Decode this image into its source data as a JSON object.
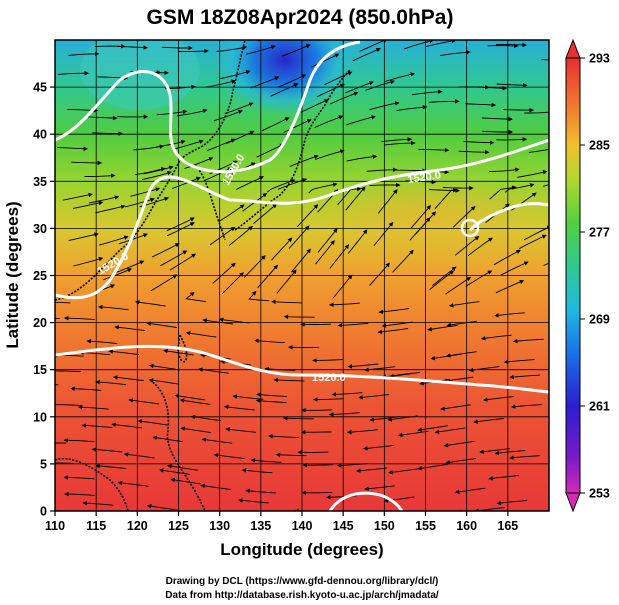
{
  "title": "GSM 18Z08Apr2024 (850.0hPa)",
  "x_axis": {
    "label": "Longitude (degrees)",
    "ticks": [
      "110",
      "115",
      "120",
      "125",
      "130",
      "135",
      "140",
      "145",
      "150",
      "155",
      "160",
      "165"
    ],
    "range": [
      110,
      170
    ]
  },
  "y_axis": {
    "label": "Latitude  (degrees)",
    "ticks": [
      "0",
      "5",
      "10",
      "15",
      "20",
      "25",
      "30",
      "35",
      "40",
      "45"
    ],
    "range": [
      0,
      50
    ]
  },
  "colorbar": {
    "ticks": [
      "293",
      "285",
      "277",
      "269",
      "261",
      "253"
    ],
    "range": [
      253,
      293
    ],
    "colors": [
      "#d42ab4",
      "#3018c8",
      "#1aa0e8",
      "#2ec8a0",
      "#6ad040",
      "#d8d830",
      "#f0a030",
      "#f05030",
      "#e03030"
    ]
  },
  "contour_labels": [
    "1520.0",
    "1520.0",
    "1520.0",
    "1520.0"
  ],
  "credits": {
    "line1": "Drawing by DCL (https://www.gfd-dennou.org/library/dcl/)",
    "line2": "Data from http://database.rish.kyoto-u.ac.jp/arch/jmadata/"
  }
}
